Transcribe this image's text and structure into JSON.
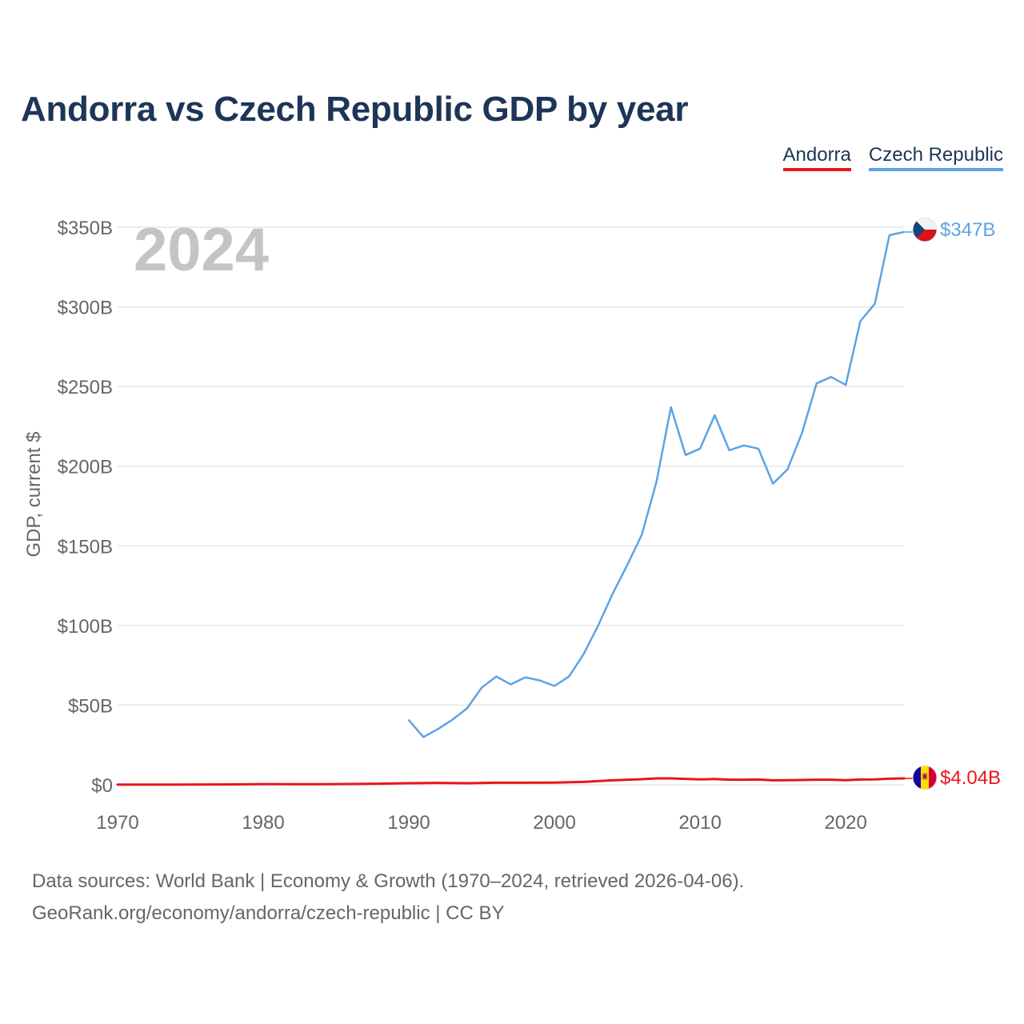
{
  "title": "Andorra vs Czech Republic GDP by year",
  "legend": [
    {
      "label": "Andorra",
      "color": "#e8161b"
    },
    {
      "label": "Czech Republic",
      "color": "#5ba4e5"
    }
  ],
  "year_watermark": "2024",
  "footer": {
    "line1": "Data sources: World Bank | Economy & Growth (1970–2024, retrieved 2026-04-06).",
    "line2": "GeoRank.org/economy/andorra/czech-republic | CC BY"
  },
  "chart_data": {
    "type": "line",
    "title": "Andorra vs Czech Republic GDP by year",
    "xlabel": "",
    "ylabel": "GDP, current $",
    "xlim": [
      1970,
      2024
    ],
    "ylim": [
      0,
      350
    ],
    "y_unit": "billions USD",
    "x_ticks": [
      1970,
      1980,
      1990,
      2000,
      2010,
      2020
    ],
    "x_tick_labels": [
      "1970",
      "1980",
      "1990",
      "2000",
      "2010",
      "2020"
    ],
    "y_ticks": [
      0,
      50,
      100,
      150,
      200,
      250,
      300,
      350
    ],
    "y_tick_labels": [
      "$0",
      "$50B",
      "$100B",
      "$150B",
      "$200B",
      "$250B",
      "$300B",
      "$350B"
    ],
    "grid": true,
    "series": [
      {
        "name": "Andorra",
        "color": "#e8161b",
        "end_label": "$4.04B",
        "flag": "andorra-flag",
        "x": [
          1970,
          1972,
          1974,
          1976,
          1978,
          1980,
          1982,
          1984,
          1986,
          1988,
          1990,
          1992,
          1994,
          1996,
          1998,
          2000,
          2002,
          2004,
          2006,
          2007,
          2008,
          2009,
          2010,
          2011,
          2012,
          2013,
          2014,
          2015,
          2016,
          2017,
          2018,
          2019,
          2020,
          2021,
          2022,
          2023,
          2024
        ],
        "values": [
          0.08,
          0.1,
          0.15,
          0.18,
          0.25,
          0.45,
          0.4,
          0.35,
          0.5,
          0.7,
          1.0,
          1.2,
          1.0,
          1.3,
          1.3,
          1.4,
          1.8,
          2.8,
          3.5,
          4.0,
          4.0,
          3.7,
          3.4,
          3.6,
          3.2,
          3.2,
          3.3,
          2.8,
          2.9,
          3.0,
          3.2,
          3.2,
          2.9,
          3.3,
          3.4,
          3.8,
          4.04
        ]
      },
      {
        "name": "Czech Republic",
        "color": "#5ba4e5",
        "end_label": "$347B",
        "flag": "czech-flag",
        "x": [
          1990,
          1991,
          1992,
          1993,
          1994,
          1995,
          1996,
          1997,
          1998,
          1999,
          2000,
          2001,
          2002,
          2003,
          2004,
          2005,
          2006,
          2007,
          2008,
          2009,
          2010,
          2011,
          2012,
          2013,
          2014,
          2015,
          2016,
          2017,
          2018,
          2019,
          2020,
          2021,
          2022,
          2023,
          2024
        ],
        "values": [
          40.5,
          30.0,
          35.0,
          41.0,
          48.0,
          61.0,
          68.0,
          63.0,
          67.5,
          65.5,
          62.0,
          68.0,
          82.0,
          100.0,
          120.0,
          138.0,
          157.0,
          190.0,
          237.0,
          207.0,
          211.0,
          232.0,
          210.0,
          213.0,
          211.0,
          189.0,
          198.0,
          221.0,
          252.0,
          256.0,
          251.0,
          291.0,
          302.0,
          345.0,
          347.0
        ]
      }
    ]
  }
}
